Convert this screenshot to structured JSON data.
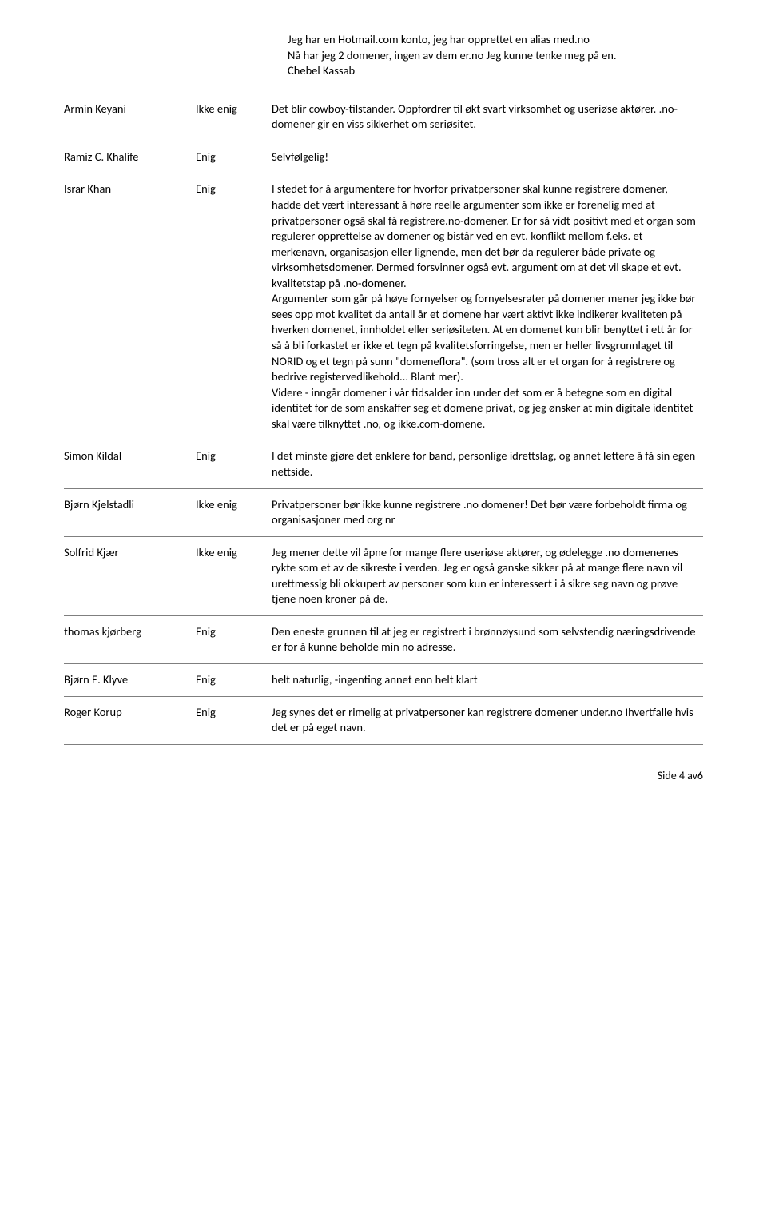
{
  "intro": {
    "line1": "Jeg har en Hotmail.com konto, jeg har opprettet en alias med.no",
    "line2": "Nå har jeg 2 domener, ingen av dem er.no Jeg kunne tenke meg på en.",
    "line3": "Chebel Kassab"
  },
  "rows": [
    {
      "name": "Armin Keyani",
      "status": "Ikke enig",
      "comment": "Det blir cowboy-tilstander. Oppfordrer til økt svart virksomhet og useriøse aktører. .no-domener gir en viss sikkerhet om seriøsitet."
    },
    {
      "name": "Ramiz C. Khalife",
      "status": "Enig",
      "comment": "Selvfølgelig!"
    },
    {
      "name": "Israr Khan",
      "status": "Enig",
      "comment": "I stedet for å argumentere for hvorfor privatpersoner skal kunne registrere domener, hadde det vært interessant å høre reelle argumenter som ikke er forenelig med at privatpersoner også skal få registrere.no-domener. Er for så vidt positivt med et organ som regulerer opprettelse av domener og bistår ved en evt. konflikt mellom f.eks. et merkenavn, organisasjon eller lignende, men det bør da regulerer både private og virksomhetsdomener. Dermed forsvinner også evt. argument om at det vil skape et evt. kvalitetstap på .no-domener.\nArgumenter som går på høye fornyelser og fornyelsesrater på domener mener jeg ikke bør sees opp mot kvalitet da antall år et domene har vært aktivt ikke indikerer kvaliteten på hverken domenet, innholdet eller seriøsiteten. At en domenet kun blir benyttet i ett år for så å bli forkastet er ikke et tegn på kvalitetsforringelse, men er heller livsgrunnlaget til NORID og et tegn på sunn \"domeneflora\". (som tross alt er et organ for å registrere og bedrive registervedlikehold... Blant mer).\nVidere - inngår domener i vår tidsalder inn under det som er å betegne som en digital identitet for de som anskaffer seg et domene privat, og jeg ønsker at min digitale identitet skal være tilknyttet .no, og ikke.com-domene."
    },
    {
      "name": "Simon Kildal",
      "status": "Enig",
      "comment": "I det minste gjøre det enklere for band, personlige idrettslag, og annet lettere å få sin egen nettside."
    },
    {
      "name": "Bjørn Kjelstadli",
      "status": "Ikke enig",
      "comment": "Privatpersoner bør ikke kunne registrere .no domener! Det bør være forbeholdt firma og organisasjoner med org nr"
    },
    {
      "name": "Solfrid Kjær",
      "status": "Ikke enig",
      "comment": "Jeg mener dette vil åpne for mange flere useriøse aktører, og ødelegge .no domenenes rykte som et av de sikreste i verden. Jeg er også ganske sikker på at mange flere navn vil urettmessig bli okkupert av personer som kun er interessert i å sikre seg navn og prøve tjene noen kroner på de."
    },
    {
      "name": "thomas kjørberg",
      "status": "Enig",
      "comment": "Den eneste grunnen til at jeg er registrert i brønnøysund som selvstendig næringsdrivende er for å kunne beholde min no adresse."
    },
    {
      "name": "Bjørn E. Klyve",
      "status": "Enig",
      "comment": "helt naturlig, -ingenting annet enn helt klart"
    },
    {
      "name": "Roger Korup",
      "status": "Enig",
      "comment": "Jeg synes det er rimelig at privatpersoner kan registrere domener under.no Ihvertfalle hvis det er på eget navn."
    }
  ],
  "footer": "Side 4 av6"
}
